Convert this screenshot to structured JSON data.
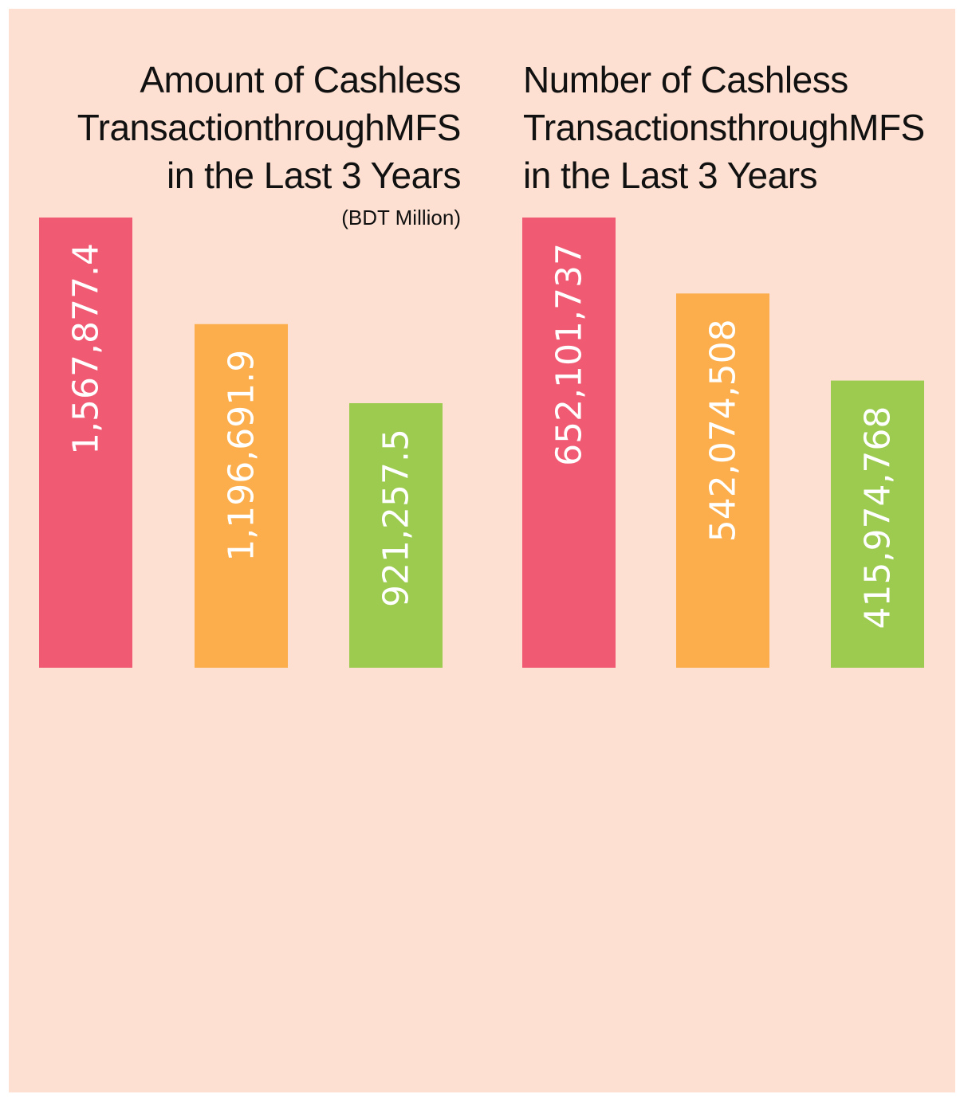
{
  "colors": {
    "background": "#fde0d1",
    "bar1": "#f05a73",
    "bar2": "#fbae4b",
    "bar3": "#9ccb50",
    "label": "#ffffff"
  },
  "chart_data": [
    {
      "type": "bar",
      "title_lines": [
        "Amount of Cashless",
        "TransactionthroughMFS",
        "in the Last 3 Years"
      ],
      "unit": "(BDT Million)",
      "values": [
        1567877.4,
        1196691.9,
        921257.5
      ],
      "labels": [
        "1,567,877.4",
        "1,196,691.9",
        "921,257.5"
      ],
      "colors": [
        "#f05a73",
        "#fbae4b",
        "#9ccb50"
      ]
    },
    {
      "type": "bar",
      "title_lines": [
        "Number of Cashless",
        "TransactionsthroughMFS",
        "in the Last 3 Years"
      ],
      "values": [
        652101737,
        542074508,
        415974768
      ],
      "labels": [
        "652,101,737",
        "542,074,508",
        "415,974,768"
      ],
      "colors": [
        "#f05a73",
        "#fbae4b",
        "#9ccb50"
      ]
    }
  ]
}
